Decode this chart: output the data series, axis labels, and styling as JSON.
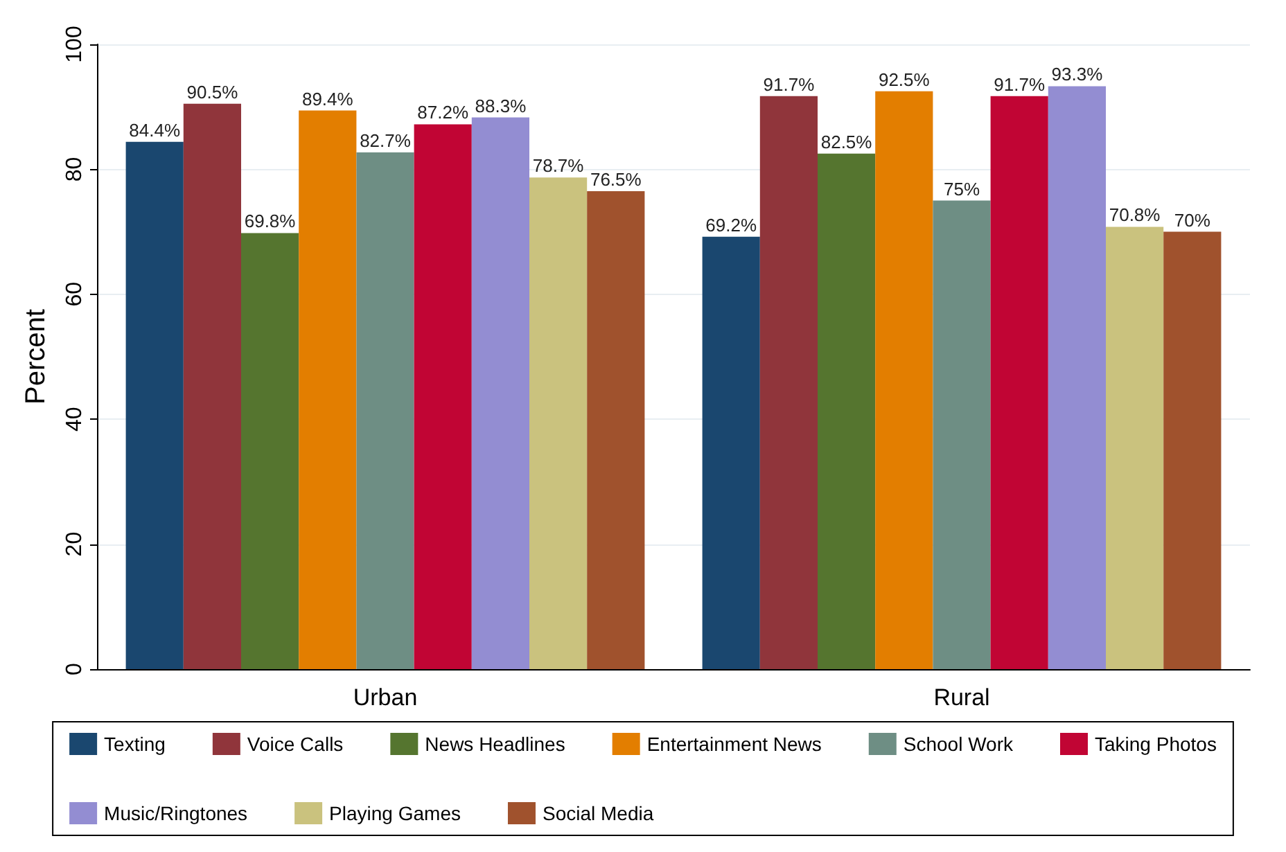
{
  "chart_data": {
    "type": "bar",
    "ylabel": "Percent",
    "categories": [
      "Urban",
      "Rural"
    ],
    "ylim": [
      0,
      100
    ],
    "yticks": [
      0,
      20,
      40,
      60,
      80,
      100
    ],
    "grid": "y",
    "legend": "bottom",
    "series": [
      {
        "name": "Texting",
        "color": "#1a476f",
        "values": [
          84.4,
          69.2
        ],
        "value_labels": [
          "84.4%",
          "69.2%"
        ]
      },
      {
        "name": "Voice Calls",
        "color": "#90353b",
        "values": [
          90.5,
          91.7
        ],
        "value_labels": [
          "90.5%",
          "91.7%"
        ]
      },
      {
        "name": "News Headlines",
        "color": "#55752f",
        "values": [
          69.8,
          82.5
        ],
        "value_labels": [
          "69.8%",
          "82.5%"
        ]
      },
      {
        "name": "Entertainment News",
        "color": "#e37e00",
        "values": [
          89.4,
          92.5
        ],
        "value_labels": [
          "89.4%",
          "92.5%"
        ]
      },
      {
        "name": "School Work",
        "color": "#6e8e84",
        "values": [
          82.7,
          75
        ],
        "value_labels": [
          "82.7%",
          "75%"
        ]
      },
      {
        "name": "Taking Photos",
        "color": "#c10534",
        "values": [
          87.2,
          91.7
        ],
        "value_labels": [
          "87.2%",
          "91.7%"
        ]
      },
      {
        "name": "Music/Ringtones",
        "color": "#938dd2",
        "values": [
          88.3,
          93.3
        ],
        "value_labels": [
          "88.3%",
          "93.3%"
        ]
      },
      {
        "name": "Playing Games",
        "color": "#cac27e",
        "values": [
          78.7,
          70.8
        ],
        "value_labels": [
          "78.7%",
          "70.8%"
        ]
      },
      {
        "name": "Social Media",
        "color": "#a0522d",
        "values": [
          76.5,
          70
        ],
        "value_labels": [
          "76.5%",
          "70%"
        ]
      }
    ]
  }
}
